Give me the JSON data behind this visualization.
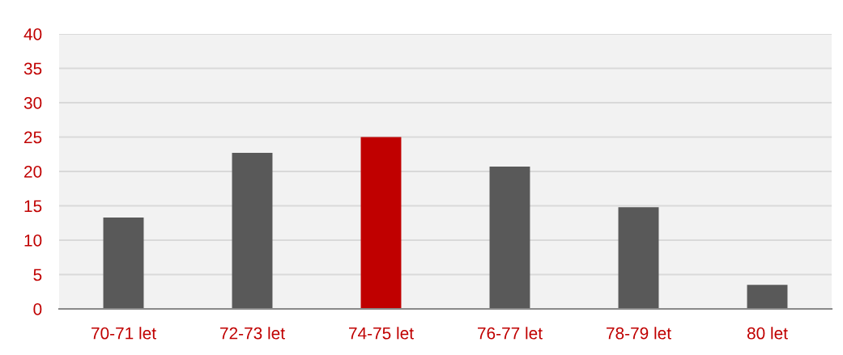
{
  "chart_data": {
    "type": "bar",
    "categories": [
      "70-71 let",
      "72-73 let",
      "74-75 let",
      "76-77 let",
      "78-79 let",
      "80 let"
    ],
    "values": [
      13.3,
      22.7,
      25.0,
      20.7,
      14.8,
      3.5
    ],
    "colors": [
      "#595959",
      "#595959",
      "#c00000",
      "#595959",
      "#595959",
      "#595959"
    ],
    "ylim": [
      0,
      40
    ],
    "yticks": [
      0,
      5,
      10,
      15,
      20,
      25,
      30,
      35,
      40
    ],
    "grid": "y",
    "legend": false
  }
}
